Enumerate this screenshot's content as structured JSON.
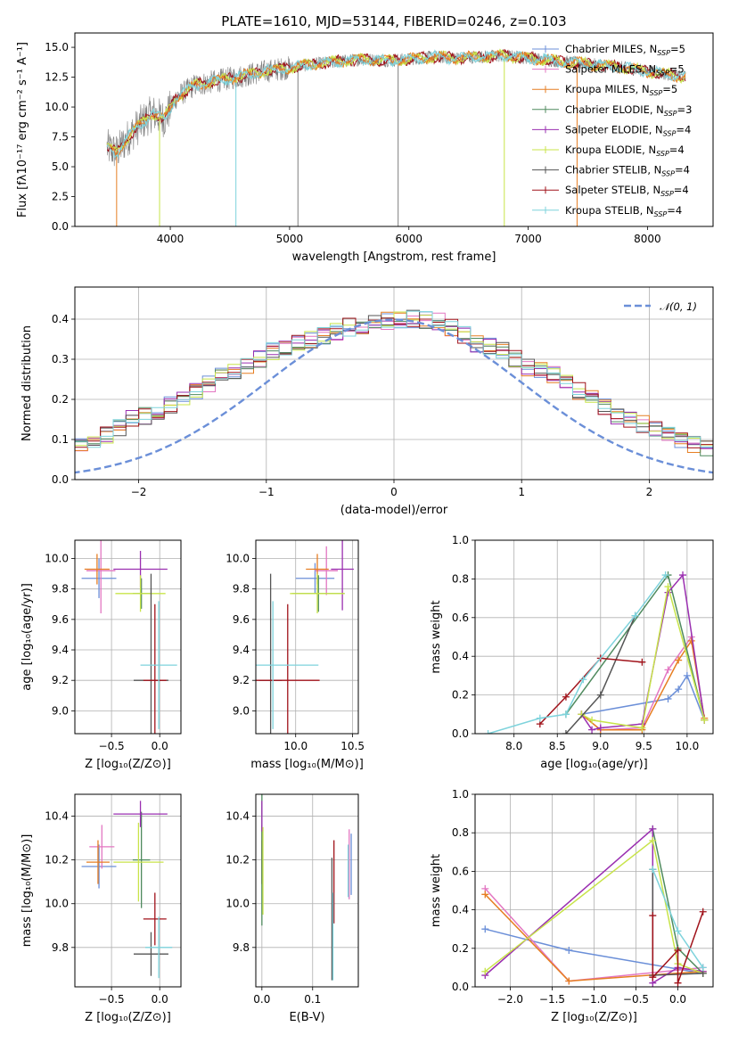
{
  "colors": {
    "chabrier_miles": "#6b8fd8",
    "salpeter_miles": "#e377c2",
    "kroupa_miles": "#e67e22",
    "chabrier_elodie": "#4f8a5e",
    "salpeter_elodie": "#9a2fb0",
    "kroupa_elodie": "#c8e44a",
    "chabrier_stelib": "#555555",
    "salpeter_stelib": "#a0121a",
    "kroupa_stelib": "#7ed3dc",
    "spectrum": "#7f7f7f",
    "grid": "#b0b0b0"
  },
  "chart_data": [
    {
      "id": "spectrum",
      "type": "line",
      "title": "PLATE=1610, MJD=53144, FIBERID=0246, z=0.103",
      "xlabel": "wavelength [Angstrom, rest frame]",
      "ylabel": "Flux [fλ10⁻¹⁷ erg cm⁻² s⁻¹ A⁻¹]",
      "xlim": [
        3200,
        8550
      ],
      "ylim": [
        0,
        16.2
      ],
      "xticks": [
        4000,
        5000,
        6000,
        7000,
        8000
      ],
      "yticks": [
        0.0,
        2.5,
        5.0,
        7.5,
        10.0,
        12.5,
        15.0
      ],
      "legend_position": "right",
      "legend": [
        {
          "label": "Chabrier MILES, N",
          "sub": "SSP",
          "tail": "=5",
          "color": "chabrier_miles"
        },
        {
          "label": "Salpeter MILES, N",
          "sub": "SSP",
          "tail": "=5",
          "color": "salpeter_miles"
        },
        {
          "label": "Kroupa MILES, N",
          "sub": "SSP",
          "tail": "=5",
          "color": "kroupa_miles"
        },
        {
          "label": "Chabrier ELODIE, N",
          "sub": "SSP",
          "tail": "=3",
          "color": "chabrier_elodie"
        },
        {
          "label": "Salpeter ELODIE, N",
          "sub": "SSP",
          "tail": "=4",
          "color": "salpeter_elodie"
        },
        {
          "label": "Kroupa ELODIE, N",
          "sub": "SSP",
          "tail": "=4",
          "color": "kroupa_elodie"
        },
        {
          "label": "Chabrier STELIB, N",
          "sub": "SSP",
          "tail": "=4",
          "color": "chabrier_stelib"
        },
        {
          "label": "Salpeter STELIB, N",
          "sub": "SSP",
          "tail": "=4",
          "color": "salpeter_stelib"
        },
        {
          "label": "Kroupa STELIB, N",
          "sub": "SSP",
          "tail": "=4",
          "color": "kroupa_stelib"
        }
      ],
      "continuum": {
        "x": [
          3470,
          3550,
          3650,
          3750,
          3850,
          3950,
          4050,
          4200,
          4400,
          4600,
          4800,
          5000,
          5200,
          5400,
          5600,
          5800,
          6000,
          6200,
          6400,
          6600,
          6800,
          7000,
          7200,
          7400,
          7600,
          7800,
          8000,
          8200,
          8320
        ],
        "y": [
          6.6,
          6.2,
          7.5,
          8.6,
          9.5,
          9.0,
          10.8,
          11.8,
          12.2,
          12.6,
          13.0,
          13.3,
          13.6,
          13.8,
          14.0,
          13.9,
          14.0,
          14.2,
          14.1,
          14.2,
          14.3,
          14.1,
          13.9,
          13.7,
          13.5,
          13.3,
          13.0,
          12.7,
          12.5
        ]
      }
    },
    {
      "id": "residuals",
      "type": "histogram",
      "xlabel": "(data-model)/error",
      "ylabel": "Normed distribution",
      "xlim": [
        -2.5,
        2.5
      ],
      "ylim": [
        0,
        0.48
      ],
      "xticks": [
        -2,
        -1,
        0,
        1,
        2
      ],
      "yticks": [
        0.0,
        0.1,
        0.2,
        0.3,
        0.4
      ],
      "legend": "𝒩(0, 1)",
      "legend_position": "top-right",
      "bin_width": 0.1,
      "base_density": [
        0.035,
        0.037,
        0.04,
        0.045,
        0.048,
        0.05,
        0.055,
        0.06,
        0.07,
        0.08,
        0.09,
        0.1,
        0.11,
        0.13,
        0.15,
        0.16,
        0.17,
        0.185,
        0.2,
        0.22,
        0.24,
        0.26,
        0.27,
        0.28,
        0.3,
        0.32,
        0.33,
        0.34,
        0.35,
        0.36,
        0.37,
        0.38,
        0.385,
        0.39,
        0.395,
        0.398,
        0.4,
        0.398,
        0.395,
        0.38,
        0.36,
        0.34,
        0.33,
        0.32,
        0.3,
        0.28,
        0.27,
        0.26,
        0.24,
        0.22,
        0.2,
        0.18,
        0.16,
        0.15,
        0.14,
        0.125,
        0.11,
        0.1,
        0.09,
        0.08,
        0.07,
        0.06,
        0.055,
        0.05,
        0.045,
        0.04,
        0.038,
        0.036,
        0.035,
        0.033
      ]
    },
    {
      "id": "age-vs-Z",
      "type": "errorbar",
      "xlabel": "Z [log₁₀(Z/Z⊙)]",
      "ylabel": "age  [log₁₀(age/yr)]",
      "xlim": [
        -0.88,
        0.22
      ],
      "ylim": [
        8.85,
        10.12
      ],
      "xticks": [
        -0.5,
        0.0
      ],
      "yticks": [
        9.0,
        9.2,
        9.4,
        9.6,
        9.8,
        10.0
      ],
      "points": [
        {
          "s": "chabrier_miles",
          "x": -0.63,
          "y": 9.87,
          "xerr": 0.18,
          "yerr": 0.13
        },
        {
          "s": "salpeter_miles",
          "x": -0.61,
          "y": 9.92,
          "xerr": 0.15,
          "yerr": 0.28
        },
        {
          "s": "kroupa_miles",
          "x": -0.65,
          "y": 9.93,
          "xerr": 0.13,
          "yerr": 0.1
        },
        {
          "s": "chabrier_elodie",
          "x": -0.19,
          "y": 9.77,
          "xerr": 0.09,
          "yerr": 0.1
        },
        {
          "s": "salpeter_elodie",
          "x": -0.2,
          "y": 9.93,
          "xerr": 0.28,
          "yerr": 0.12
        },
        {
          "s": "kroupa_elodie",
          "x": -0.2,
          "y": 9.77,
          "xerr": 0.26,
          "yerr": 0.12
        },
        {
          "s": "chabrier_stelib",
          "x": -0.09,
          "y": 9.2,
          "xerr": 0.18,
          "yerr": 0.7
        },
        {
          "s": "salpeter_stelib",
          "x": -0.05,
          "y": 9.2,
          "xerr": 0.12,
          "yerr": 0.5
        },
        {
          "s": "kroupa_stelib",
          "x": -0.01,
          "y": 9.3,
          "xerr": 0.19,
          "yerr": 0.42
        }
      ]
    },
    {
      "id": "age-vs-mass",
      "type": "errorbar",
      "xlabel": "mass [log₁₀(M/M⊙)]",
      "ylabel": "",
      "xlim": [
        9.65,
        10.55
      ],
      "ylim": [
        8.85,
        10.12
      ],
      "xticks": [
        10.0,
        10.5
      ],
      "yticks": [
        9.0,
        9.2,
        9.4,
        9.6,
        9.8,
        10.0
      ],
      "points": [
        {
          "s": "chabrier_miles",
          "x": 10.17,
          "y": 9.87,
          "xerr": 0.17,
          "yerr": 0.1
        },
        {
          "s": "salpeter_miles",
          "x": 10.27,
          "y": 9.92,
          "xerr": 0.1,
          "yerr": 0.16
        },
        {
          "s": "kroupa_miles",
          "x": 10.19,
          "y": 9.93,
          "xerr": 0.1,
          "yerr": 0.1
        },
        {
          "s": "chabrier_elodie",
          "x": 10.2,
          "y": 9.77,
          "xerr": 0.23,
          "yerr": 0.12
        },
        {
          "s": "salpeter_elodie",
          "x": 10.41,
          "y": 9.93,
          "xerr": 0.1,
          "yerr": 0.27
        },
        {
          "s": "kroupa_elodie",
          "x": 10.19,
          "y": 9.77,
          "xerr": 0.24,
          "yerr": 0.13
        },
        {
          "s": "chabrier_stelib",
          "x": 9.78,
          "y": 9.2,
          "xerr": 0.1,
          "yerr": 0.7
        },
        {
          "s": "salpeter_stelib",
          "x": 9.93,
          "y": 9.2,
          "xerr": 0.28,
          "yerr": 0.5
        },
        {
          "s": "kroupa_stelib",
          "x": 9.8,
          "y": 9.3,
          "xerr": 0.4,
          "yerr": 0.42
        }
      ]
    },
    {
      "id": "mass-weight-vs-age",
      "type": "line",
      "xlabel": "age  [log₁₀(age/yr)]",
      "ylabel": "mass weight",
      "xlim": [
        7.55,
        10.3
      ],
      "ylim": [
        0,
        1.0
      ],
      "xticks": [
        8.0,
        8.5,
        9.0,
        9.5,
        10.0
      ],
      "yticks": [
        0.0,
        0.2,
        0.4,
        0.6,
        0.8,
        1.0
      ],
      "series": [
        {
          "s": "chabrier_miles",
          "x": [
            8.78,
            9.78,
            9.9,
            10.0,
            10.2
          ],
          "y": [
            0.1,
            0.18,
            0.23,
            0.3,
            0.07
          ]
        },
        {
          "s": "salpeter_miles",
          "x": [
            8.78,
            9.0,
            9.48,
            9.78,
            10.05,
            10.2
          ],
          "y": [
            0.1,
            0.02,
            0.03,
            0.33,
            0.5,
            0.07
          ]
        },
        {
          "s": "kroupa_miles",
          "x": [
            8.78,
            9.0,
            9.48,
            9.9,
            10.05,
            10.2
          ],
          "y": [
            0.1,
            0.02,
            0.02,
            0.38,
            0.48,
            0.08
          ]
        },
        {
          "s": "chabrier_elodie",
          "x": [
            8.6,
            9.78,
            10.2
          ],
          "y": [
            0.1,
            0.82,
            0.07
          ]
        },
        {
          "s": "salpeter_elodie",
          "x": [
            8.78,
            8.9,
            9.0,
            9.48,
            9.78,
            9.95,
            10.2
          ],
          "y": [
            0.1,
            0.02,
            0.03,
            0.05,
            0.73,
            0.82,
            0.07
          ]
        },
        {
          "s": "kroupa_elodie",
          "x": [
            8.78,
            8.9,
            9.48,
            9.78,
            10.2
          ],
          "y": [
            0.1,
            0.07,
            0.03,
            0.76,
            0.07
          ]
        },
        {
          "s": "chabrier_stelib",
          "x": [
            8.6,
            9.0,
            9.4
          ],
          "y": [
            0.0,
            0.2,
            0.61
          ]
        },
        {
          "s": "salpeter_stelib",
          "x": [
            8.3,
            8.6,
            9.0,
            9.48
          ],
          "y": [
            0.05,
            0.19,
            0.39,
            0.37
          ]
        },
        {
          "s": "kroupa_stelib",
          "x": [
            7.7,
            8.3,
            8.6,
            8.8,
            9.4,
            9.75
          ],
          "y": [
            0.0,
            0.08,
            0.1,
            0.28,
            0.61,
            0.82
          ]
        }
      ]
    },
    {
      "id": "mass-vs-Z",
      "type": "errorbar",
      "xlabel": "Z [log₁₀(Z/Z⊙)]",
      "ylabel": "mass [log₁₀(M/M⊙)]",
      "xlim": [
        -0.88,
        0.22
      ],
      "ylim": [
        9.62,
        10.5
      ],
      "xticks": [
        -0.5,
        0.0
      ],
      "yticks": [
        9.8,
        10.0,
        10.2,
        10.4
      ],
      "points": [
        {
          "s": "chabrier_miles",
          "x": -0.63,
          "y": 10.17,
          "xerr": 0.18,
          "yerr": 0.1
        },
        {
          "s": "salpeter_miles",
          "x": -0.6,
          "y": 10.26,
          "xerr": 0.13,
          "yerr": 0.1
        },
        {
          "s": "kroupa_miles",
          "x": -0.64,
          "y": 10.19,
          "xerr": 0.12,
          "yerr": 0.1
        },
        {
          "s": "chabrier_elodie",
          "x": -0.19,
          "y": 10.2,
          "xerr": 0.09,
          "yerr": 0.22
        },
        {
          "s": "salpeter_elodie",
          "x": -0.2,
          "y": 10.41,
          "xerr": 0.28,
          "yerr": 0.06
        },
        {
          "s": "kroupa_elodie",
          "x": -0.22,
          "y": 10.19,
          "xerr": 0.26,
          "yerr": 0.18
        },
        {
          "s": "chabrier_stelib",
          "x": -0.09,
          "y": 9.77,
          "xerr": 0.18,
          "yerr": 0.1
        },
        {
          "s": "salpeter_stelib",
          "x": -0.05,
          "y": 9.93,
          "xerr": 0.12,
          "yerr": 0.12
        },
        {
          "s": "kroupa_stelib",
          "x": -0.01,
          "y": 9.8,
          "xerr": 0.14,
          "yerr": 0.14
        }
      ]
    },
    {
      "id": "mass-vs-EBV",
      "type": "errorbar",
      "xlabel": "E(B-V)",
      "ylabel": "",
      "xlim": [
        -0.012,
        0.19
      ],
      "ylim": [
        9.62,
        10.5
      ],
      "xticks": [
        0.0,
        0.1
      ],
      "yticks": [
        9.8,
        10.0,
        10.2,
        10.4
      ],
      "points": [
        {
          "s": "chabrier_miles",
          "x": 0.0,
          "y": 10.17,
          "xerr": 0.0,
          "yerr": 0.08
        },
        {
          "s": "salpeter_miles",
          "x": 0.0,
          "y": 10.26,
          "xerr": 0.0,
          "yerr": 0.1
        },
        {
          "s": "kroupa_miles",
          "x": 0.0,
          "y": 10.19,
          "xerr": 0.0,
          "yerr": 0.1
        },
        {
          "s": "chabrier_elodie",
          "x": 0.0,
          "y": 10.2,
          "xerr": 0.0,
          "yerr": 0.3
        },
        {
          "s": "salpeter_elodie",
          "x": 0.0,
          "y": 10.4,
          "xerr": 0.0,
          "yerr": 0.07
        },
        {
          "s": "kroupa_elodie",
          "x": 0.002,
          "y": 10.15,
          "xerr": 0.0,
          "yerr": 0.2
        },
        {
          "s": "chabrier_stelib",
          "x": 0.138,
          "y": 9.93,
          "xerr": 0.0,
          "yerr": 0.28
        },
        {
          "s": "salpeter_stelib",
          "x": 0.142,
          "y": 10.1,
          "xerr": 0.0,
          "yerr": 0.19
        },
        {
          "s": "kroupa_stelib",
          "x": 0.14,
          "y": 9.85,
          "xerr": 0.0,
          "yerr": 0.2
        },
        {
          "s": "salpeter_miles",
          "x": 0.172,
          "y": 10.18,
          "xerr": 0.0,
          "yerr": 0.16
        },
        {
          "s": "chabrier_miles",
          "x": 0.176,
          "y": 10.18,
          "xerr": 0.0,
          "yerr": 0.14
        },
        {
          "s": "kroupa_stelib",
          "x": 0.17,
          "y": 10.15,
          "xerr": 0.0,
          "yerr": 0.12
        }
      ]
    },
    {
      "id": "mass-weight-vs-Z",
      "type": "line",
      "xlabel": "Z [log₁₀(Z/Z⊙)]",
      "ylabel": "mass weight",
      "xlim": [
        -2.42,
        0.42
      ],
      "ylim": [
        0,
        1.0
      ],
      "xticks": [
        -2.0,
        -1.5,
        -1.0,
        -0.5,
        0.0
      ],
      "yticks": [
        0.0,
        0.2,
        0.4,
        0.6,
        0.8,
        1.0
      ],
      "series": [
        {
          "s": "chabrier_miles",
          "x": [
            -2.3,
            -1.3,
            0.3
          ],
          "y": [
            0.3,
            0.19,
            0.07
          ]
        },
        {
          "s": "salpeter_miles",
          "x": [
            -2.3,
            -1.3,
            0.3
          ],
          "y": [
            0.51,
            0.03,
            0.1
          ]
        },
        {
          "s": "kroupa_miles",
          "x": [
            -2.3,
            -1.3,
            0.3
          ],
          "y": [
            0.48,
            0.03,
            0.08
          ]
        },
        {
          "s": "chabrier_elodie",
          "x": [
            -0.3,
            0.0,
            0.3
          ],
          "y": [
            0.82,
            0.2,
            0.07
          ]
        },
        {
          "s": "salpeter_elodie",
          "x": [
            -2.3,
            -0.3,
            -0.3,
            0.0,
            0.3
          ],
          "y": [
            0.06,
            0.82,
            0.02,
            0.1,
            0.08
          ]
        },
        {
          "s": "kroupa_elodie",
          "x": [
            -2.3,
            -0.3,
            0.0,
            0.3
          ],
          "y": [
            0.08,
            0.76,
            0.12,
            0.07
          ]
        },
        {
          "s": "chabrier_stelib",
          "x": [
            -0.3,
            -0.3,
            0.3
          ],
          "y": [
            0.61,
            0.06,
            0.07
          ]
        },
        {
          "s": "salpeter_stelib",
          "x": [
            -0.3,
            -0.3,
            0.0,
            0.0,
            0.3
          ],
          "y": [
            0.37,
            0.05,
            0.19,
            0.02,
            0.39
          ]
        },
        {
          "s": "kroupa_stelib",
          "x": [
            -0.3,
            0.0,
            0.3
          ],
          "y": [
            0.61,
            0.29,
            0.1
          ]
        }
      ]
    }
  ]
}
